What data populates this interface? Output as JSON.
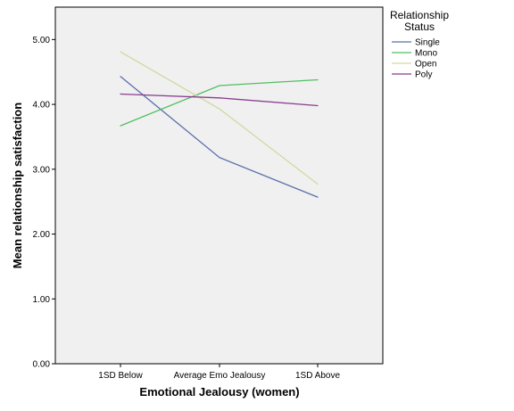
{
  "chart_data": {
    "type": "line",
    "title": "",
    "xlabel": "Emotional Jealousy (women)",
    "ylabel": "Mean relationship satisfaction",
    "categories": [
      "1SD Below",
      "Average Emo Jealousy",
      "1SD Above"
    ],
    "ylim": [
      0,
      5.5
    ],
    "yticks": [
      "0.00",
      "1.00",
      "2.00",
      "3.00",
      "4.00",
      "5.00"
    ],
    "grid": false,
    "legend": {
      "title_line1": "Relationship",
      "title_line2": "Status",
      "placement": "right"
    },
    "series": [
      {
        "name": "Single",
        "color": "#5a6fa8",
        "values": [
          4.43,
          3.18,
          2.57
        ]
      },
      {
        "name": "Mono",
        "color": "#4fbf61",
        "values": [
          3.67,
          4.29,
          4.38
        ]
      },
      {
        "name": "Open",
        "color": "#d0d9a0",
        "values": [
          4.81,
          3.93,
          2.77
        ]
      },
      {
        "name": "Poly",
        "color": "#8a3d8f",
        "values": [
          4.16,
          4.1,
          3.98
        ]
      }
    ]
  }
}
